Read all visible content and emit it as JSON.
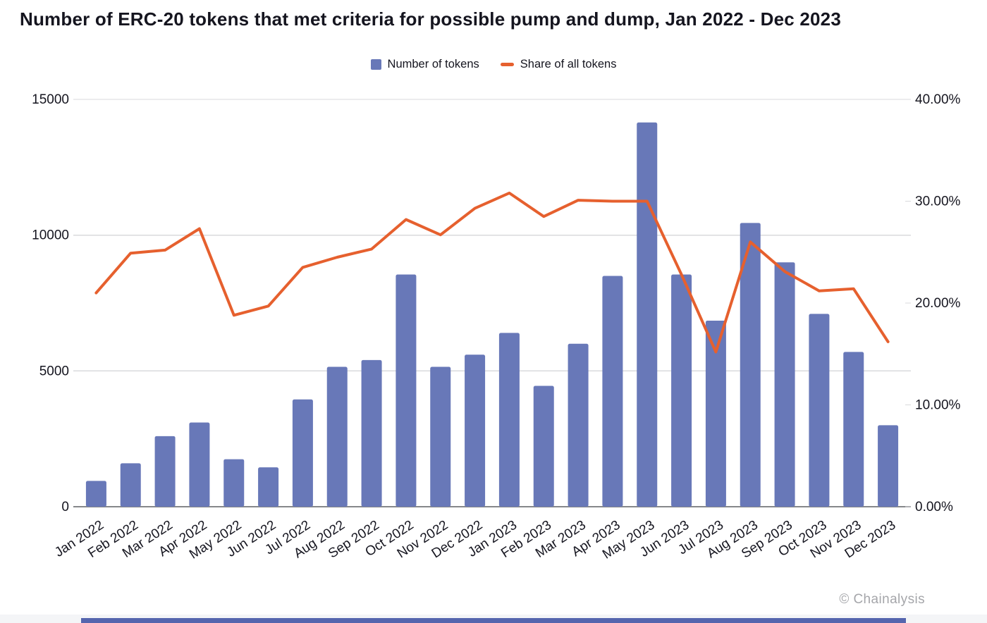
{
  "title": "Number of ERC-20 tokens that met criteria for possible pump and dump, Jan 2022 - Dec 2023",
  "legend": {
    "items": [
      {
        "label": "Number of tokens",
        "swatch": "bar-square",
        "color": "#6878b8"
      },
      {
        "label": "Share of all tokens",
        "swatch": "line-dash",
        "color": "#e6602e"
      }
    ]
  },
  "attribution": "© Chainalysis",
  "colors": {
    "bar": "#6878b8",
    "line": "#e6602e",
    "text": "#15151f",
    "gridline": "#d9dadc",
    "baseline": "#85878a",
    "attribution_gray": "#a5a6aa",
    "footer_band": "#f4f5f7",
    "footer_accent": "#5565ae"
  },
  "chart_data": {
    "type": "bar",
    "subtype": "bar-with-line-overlay",
    "title": "Number of ERC-20 tokens that met criteria for possible pump and dump, Jan 2022 - Dec 2023",
    "grid": true,
    "legend_position": "top-center",
    "categories": [
      "Jan 2022",
      "Feb 2022",
      "Mar 2022",
      "Apr 2022",
      "May 2022",
      "Jun 2022",
      "Jul 2022",
      "Aug 2022",
      "Sep 2022",
      "Oct 2022",
      "Nov 2022",
      "Dec 2022",
      "Jan 2023",
      "Feb 2023",
      "Mar 2023",
      "Apr 2023",
      "May 2023",
      "Jun 2023",
      "Jul 2023",
      "Aug 2023",
      "Sep 2023",
      "Oct 2023",
      "Nov 2023",
      "Dec 2023"
    ],
    "series": [
      {
        "name": "Number of tokens",
        "type": "bar",
        "axis": "left",
        "color": "#6878b8",
        "values": [
          950,
          1600,
          2600,
          3100,
          1750,
          1450,
          3950,
          5150,
          5400,
          8550,
          5150,
          5600,
          6400,
          4450,
          6000,
          8500,
          14150,
          8550,
          6850,
          10450,
          9000,
          7100,
          5700,
          3000
        ]
      },
      {
        "name": "Share of all tokens",
        "type": "line",
        "axis": "right",
        "color": "#e6602e",
        "values": [
          21.0,
          24.9,
          25.2,
          27.3,
          18.8,
          19.7,
          23.5,
          24.5,
          25.3,
          28.2,
          26.7,
          29.3,
          30.8,
          28.5,
          30.1,
          30.0,
          30.0,
          22.8,
          15.2,
          26.0,
          23.1,
          21.2,
          21.4,
          16.2
        ]
      }
    ],
    "left_axis": {
      "range": [
        0,
        15000
      ],
      "ticks": [
        0,
        5000,
        10000,
        15000
      ],
      "labels": [
        "0",
        "5000",
        "10000",
        "15000"
      ]
    },
    "right_axis": {
      "range": [
        0,
        40
      ],
      "ticks": [
        0,
        10,
        20,
        30,
        40
      ],
      "labels": [
        "0.00%",
        "10.00%",
        "20.00%",
        "30.00%",
        "40.00%"
      ]
    }
  }
}
